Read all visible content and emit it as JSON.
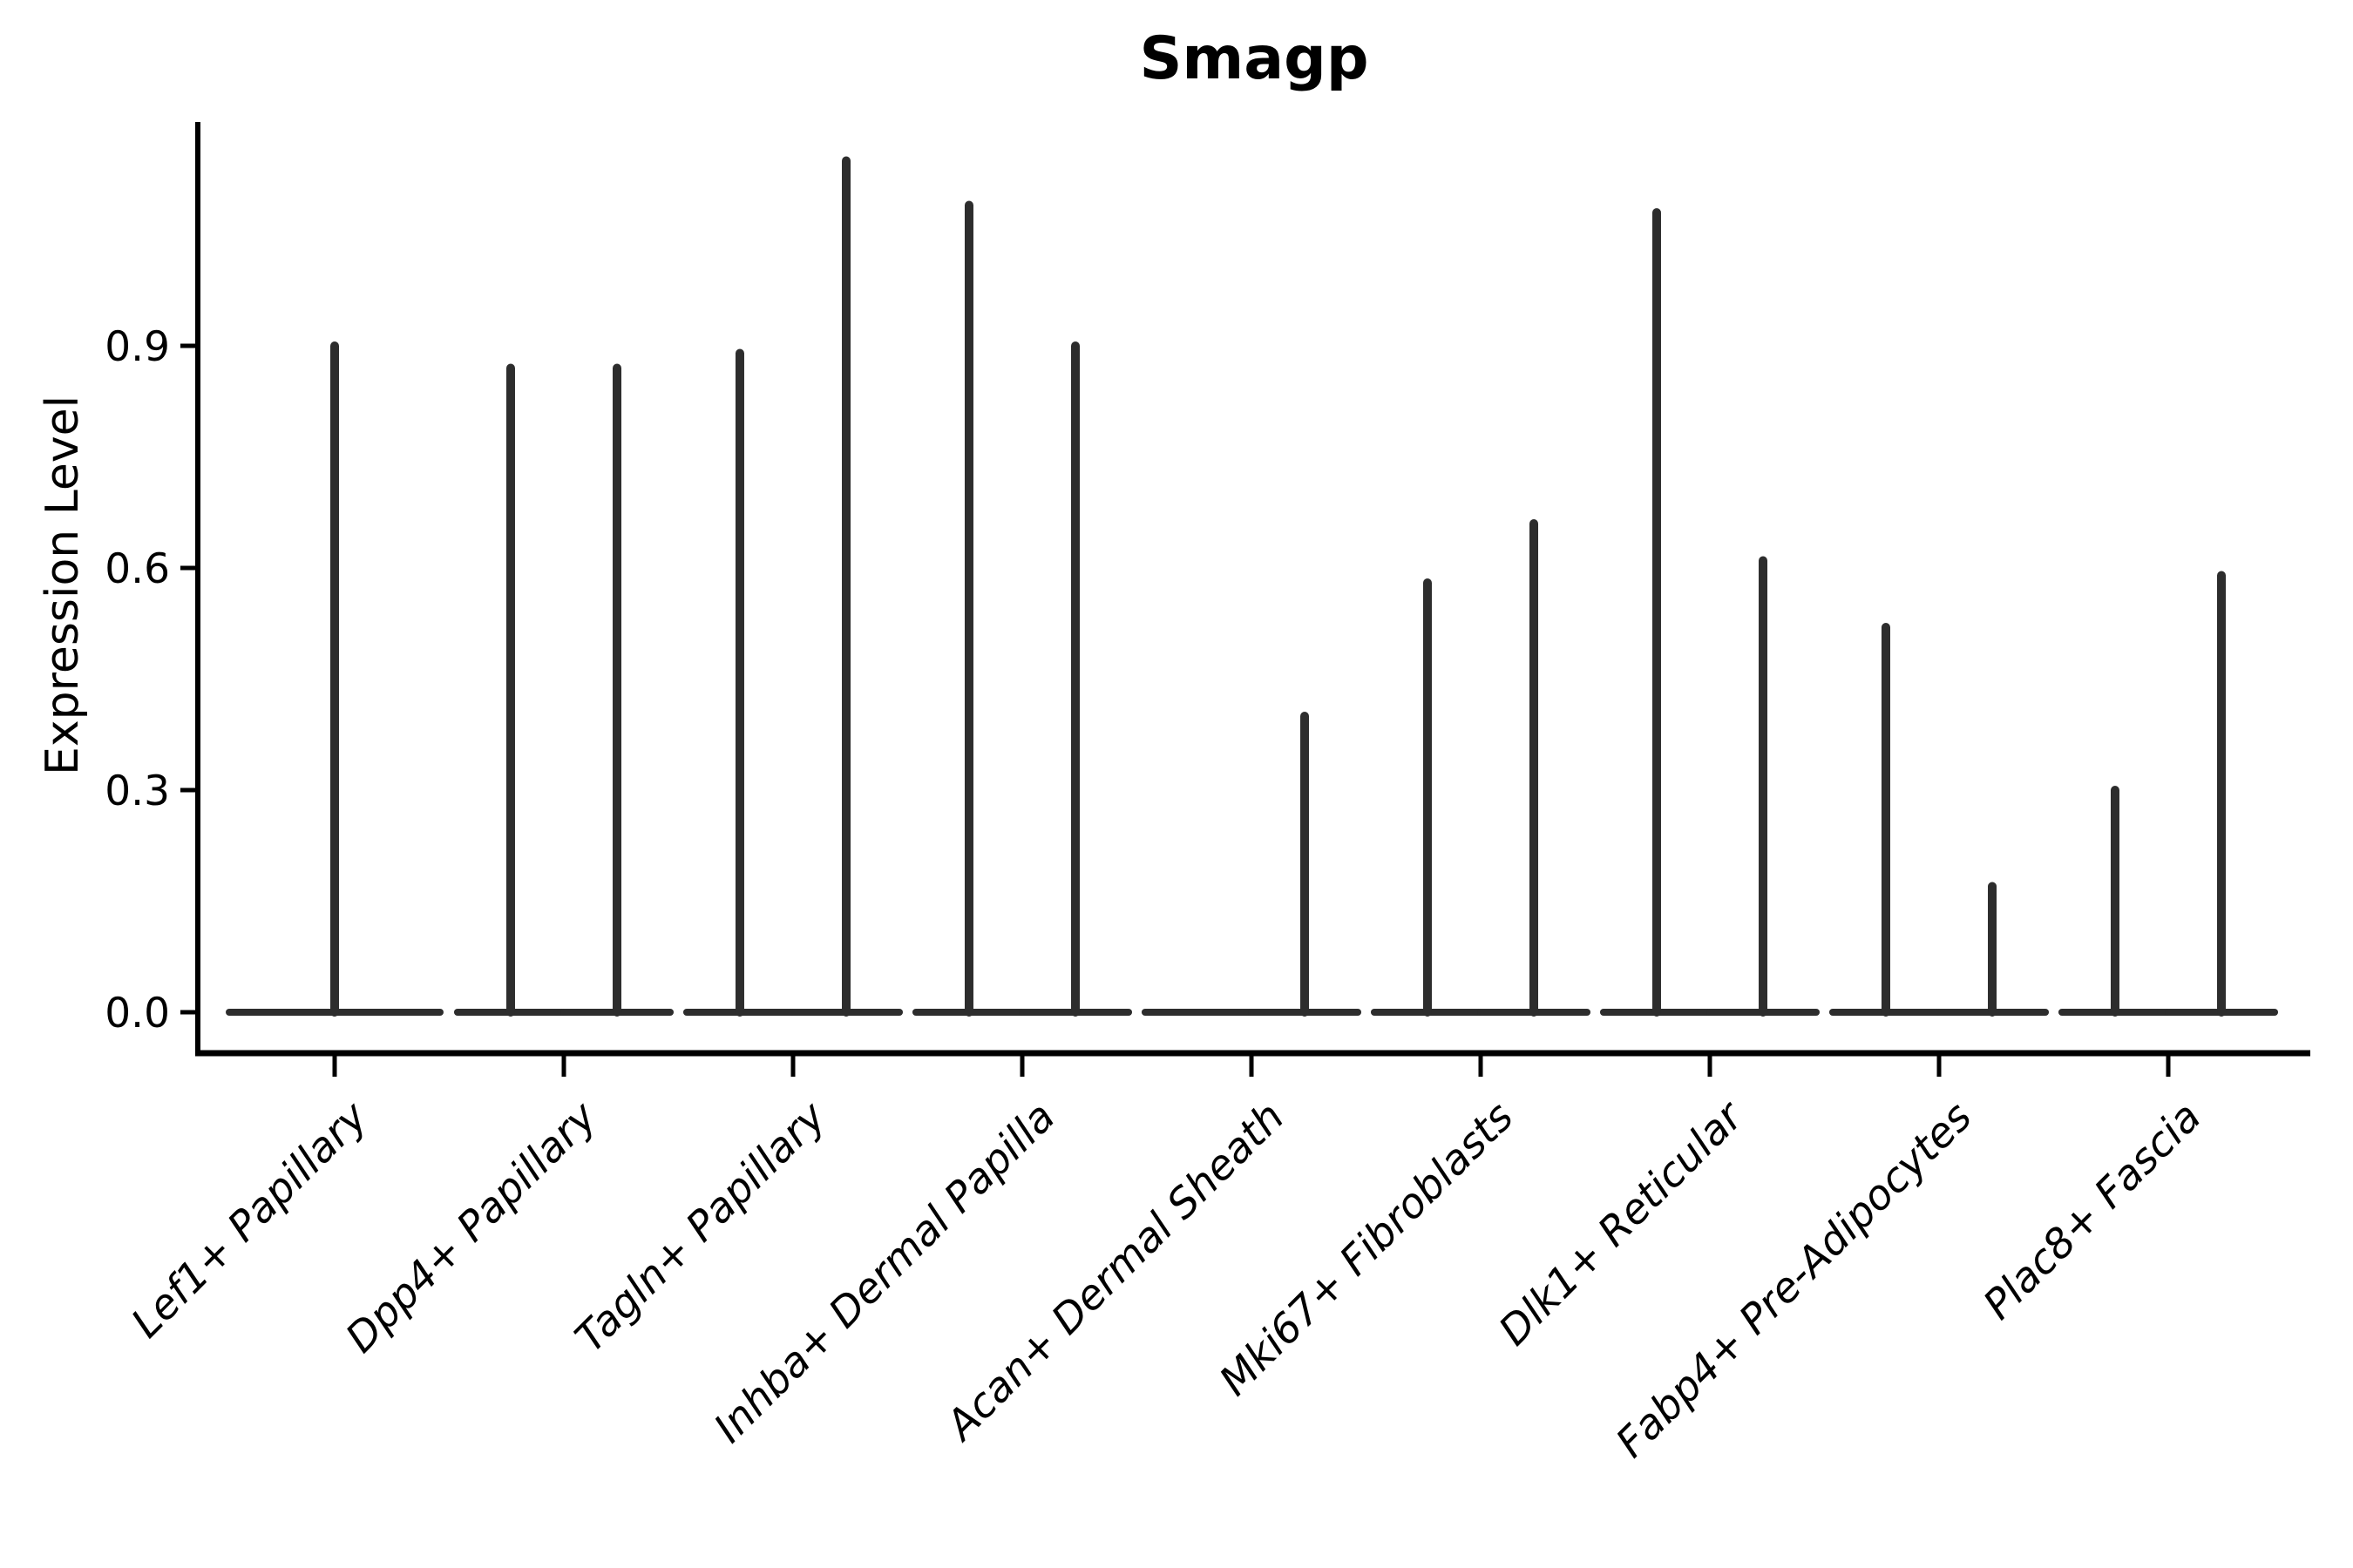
{
  "figure": {
    "background": "#ffffff"
  },
  "chart_data": {
    "type": "violin",
    "title": "Smagp",
    "ylabel": "Expression Level",
    "xlabel": "",
    "grid": false,
    "legend": null,
    "yticks": [
      0.0,
      0.3,
      0.6,
      0.9
    ],
    "ytick_labels": [
      "0.0",
      "0.3",
      "0.6",
      "0.9"
    ],
    "ylim": [
      -0.06,
      1.2
    ],
    "xtick_rotation": 45,
    "line_color": "#2d2d2d",
    "axis_color": "#000000",
    "categories": [
      "Lef1+ Papillary",
      "Dpp4+ Papillary",
      "Tagln+ Papillary",
      "Inhba+ Dermal Papilla",
      "Acan+ Dermal Sheath",
      "Mki67+ Fibroblasts",
      "Dlk1+ Reticular",
      "Fabp4+ Pre-Adipocytes",
      "Plac8+ Fascia"
    ],
    "groups": [
      {
        "category": "Lef1+ Papillary",
        "violins": [
          {
            "dx": 0.0,
            "half_width": 0.46,
            "peak": 0.9
          }
        ]
      },
      {
        "category": "Dpp4+ Papillary",
        "violins": [
          {
            "dx": -0.232,
            "half_width": 0.232,
            "peak": 0.87
          },
          {
            "dx": 0.232,
            "half_width": 0.232,
            "peak": 0.87
          }
        ]
      },
      {
        "category": "Tagln+ Papillary",
        "violins": [
          {
            "dx": -0.232,
            "half_width": 0.232,
            "peak": 0.89
          },
          {
            "dx": 0.232,
            "half_width": 0.232,
            "peak": 1.15
          }
        ]
      },
      {
        "category": "Inhba+ Dermal Papilla",
        "violins": [
          {
            "dx": -0.232,
            "half_width": 0.232,
            "peak": 1.09
          },
          {
            "dx": 0.232,
            "half_width": 0.232,
            "peak": 0.9
          }
        ]
      },
      {
        "category": "Acan+ Dermal Sheath",
        "violins": [
          {
            "dx": -0.232,
            "half_width": 0.232,
            "peak": 0.0
          },
          {
            "dx": 0.232,
            "half_width": 0.232,
            "peak": 0.4
          }
        ]
      },
      {
        "category": "Mki67+ Fibroblasts",
        "violins": [
          {
            "dx": -0.232,
            "half_width": 0.232,
            "peak": 0.58
          },
          {
            "dx": 0.232,
            "half_width": 0.232,
            "peak": 0.66
          }
        ]
      },
      {
        "category": "Dlk1+ Reticular",
        "violins": [
          {
            "dx": -0.232,
            "half_width": 0.232,
            "peak": 1.08
          },
          {
            "dx": 0.232,
            "half_width": 0.232,
            "peak": 0.61
          }
        ]
      },
      {
        "category": "Fabp4+ Pre-Adipocytes",
        "violins": [
          {
            "dx": -0.232,
            "half_width": 0.232,
            "peak": 0.52
          },
          {
            "dx": 0.232,
            "half_width": 0.232,
            "peak": 0.17
          }
        ]
      },
      {
        "category": "Plac8+ Fascia",
        "violins": [
          {
            "dx": -0.232,
            "half_width": 0.232,
            "peak": 0.3
          },
          {
            "dx": 0.232,
            "half_width": 0.232,
            "peak": 0.59
          }
        ]
      }
    ]
  }
}
